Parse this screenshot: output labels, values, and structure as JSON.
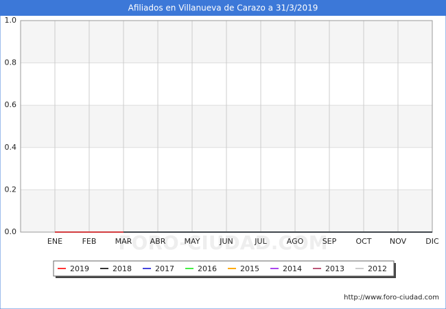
{
  "chart_data": {
    "type": "line",
    "title": "Afiliados en Villanueva de Carazo a 31/3/2019",
    "categories": [
      "ENE",
      "FEB",
      "MAR",
      "ABR",
      "MAY",
      "JUN",
      "JUL",
      "AGO",
      "SEP",
      "OCT",
      "NOV",
      "DIC"
    ],
    "series": [
      {
        "name": "2019",
        "color": "#ff3333",
        "values": [
          0,
          0,
          0,
          null,
          null,
          null,
          null,
          null,
          null,
          null,
          null,
          null
        ]
      },
      {
        "name": "2018",
        "color": "#333333",
        "values": [
          0,
          0,
          0,
          0,
          0,
          0,
          0,
          0,
          0,
          0,
          0,
          0
        ]
      },
      {
        "name": "2017",
        "color": "#4444dd",
        "values": [
          0,
          0,
          0,
          0,
          0,
          0,
          0,
          0,
          0,
          0,
          0,
          0
        ]
      },
      {
        "name": "2016",
        "color": "#44ee44",
        "values": [
          0,
          0,
          0,
          0,
          0,
          0,
          0,
          0,
          0,
          0,
          0,
          0
        ]
      },
      {
        "name": "2015",
        "color": "#ffaa00",
        "values": [
          0,
          0,
          0,
          0,
          0,
          0,
          0,
          0,
          0,
          0,
          0,
          0
        ]
      },
      {
        "name": "2014",
        "color": "#aa44ee",
        "values": [
          0,
          0,
          0,
          0,
          0,
          0,
          0,
          0,
          0,
          0,
          0,
          0
        ]
      },
      {
        "name": "2013",
        "color": "#bb5577",
        "values": [
          0,
          0,
          0,
          0,
          0,
          0,
          0,
          0,
          0,
          0,
          0,
          0
        ]
      },
      {
        "name": "2012",
        "color": "#cccccc",
        "values": [
          0,
          0,
          0,
          0,
          0,
          0,
          0,
          0,
          0,
          0,
          0,
          0
        ]
      }
    ],
    "ylim": [
      0,
      1
    ],
    "yticks": [
      {
        "value": 0,
        "label": "0.0"
      },
      0.2,
      0.4,
      0.6,
      0.8,
      {
        "value": 1,
        "label": "1.0"
      }
    ],
    "grid": true,
    "legend": "bottom",
    "watermark": "FORO-CIUDAD.COM",
    "source": "http://www.foro-ciudad.com"
  }
}
